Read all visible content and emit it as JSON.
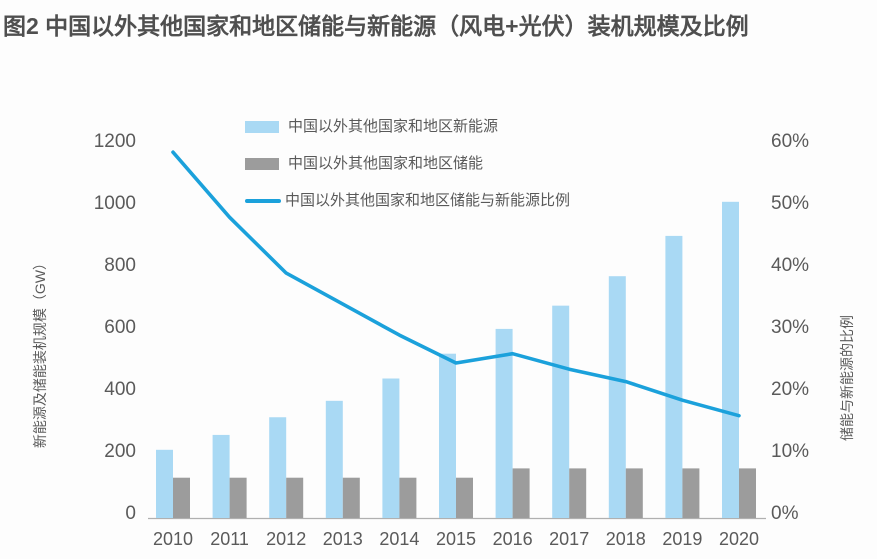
{
  "figure": {
    "title": "图2 中国以外其他国家和地区储能与新能源（风电+光伏）装机规模及比例"
  },
  "colors": {
    "new_energy_bar": "#A9D9F4",
    "storage_bar": "#9C9C9C",
    "ratio_line": "#1BA1DB",
    "title_text": "#4F4F4F",
    "axis_text": "#5A5A5A",
    "axis_line": "#B0B0B0",
    "background": "#FDFDFD"
  },
  "legend": {
    "items": [
      {
        "label": "中国以外其他国家和地区新能源",
        "swatch": "bar",
        "color": "#A9D9F4"
      },
      {
        "label": "中国以外其他国家和地区储能",
        "swatch": "bar",
        "color": "#9C9C9C"
      },
      {
        "label": "中国以外其他国家和地区储能与新能源比例",
        "swatch": "line",
        "color": "#1BA1DB"
      }
    ]
  },
  "chart_data": {
    "type": "combo",
    "categories": [
      "2010",
      "2011",
      "2012",
      "2013",
      "2014",
      "2015",
      "2016",
      "2017",
      "2018",
      "2019",
      "2020"
    ],
    "series": [
      {
        "name": "中国以外其他国家和地区新能源",
        "type": "bar",
        "axis": "left",
        "unit": "GW",
        "color": "#A9D9F4",
        "values": [
          220,
          268,
          325,
          378,
          450,
          530,
          610,
          685,
          780,
          910,
          1020
        ]
      },
      {
        "name": "中国以外其他国家和地区储能",
        "type": "bar",
        "axis": "left",
        "unit": "GW",
        "color": "#9C9C9C",
        "values": [
          130,
          130,
          130,
          130,
          130,
          130,
          160,
          160,
          160,
          160,
          160
        ]
      },
      {
        "name": "中国以外其他国家和地区储能与新能源比例",
        "type": "line",
        "axis": "right",
        "unit": "%",
        "color": "#1BA1DB",
        "values": [
          59,
          48.5,
          39.5,
          34.5,
          29.5,
          25,
          26.5,
          24,
          22,
          19,
          16.5
        ]
      }
    ],
    "left_axis": {
      "title": "新能源及储能装机规模（GW）",
      "min": 0,
      "max": 1200,
      "tick_interval": 200,
      "tick_labels": [
        "0",
        "200",
        "400",
        "600",
        "800",
        "1000",
        "1200"
      ]
    },
    "right_axis": {
      "title": "储能与新能源的比例",
      "min": 0,
      "max": 60,
      "tick_interval": 10,
      "tick_labels": [
        "0%",
        "10%",
        "20%",
        "30%",
        "40%",
        "50%",
        "60%"
      ]
    },
    "grid": false,
    "legend_position": "top-center"
  }
}
